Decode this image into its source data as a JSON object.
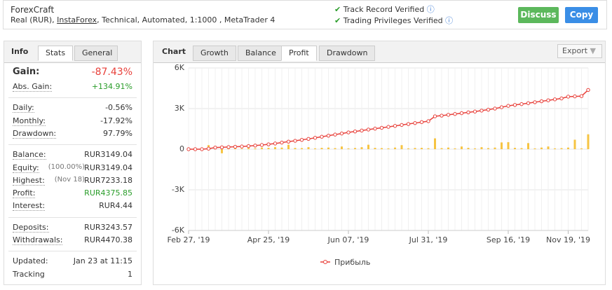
{
  "header": {
    "title": "ForexCraft",
    "subtitle": [
      "Real (RUR), ",
      "InstaForex",
      ", Technical, Automated, 1:1000 , MetaTrader 4"
    ],
    "verified": [
      "Track Record Verified",
      "Trading Privileges Verified"
    ],
    "buttons": [
      "Discuss",
      "Copy"
    ]
  },
  "info": {
    "tabs": [
      "Info",
      "Stats",
      "General"
    ],
    "groups": [
      [
        {
          "label": "Gain:",
          "value": "-87.43%",
          "color": "#e8413b"
        },
        {
          "label": "Abs. Gain:",
          "value": "+134.91%",
          "color": "#2a9d2a"
        }
      ],
      [
        {
          "label": "Daily:",
          "value": "-0.56%"
        },
        {
          "label": "Monthly:",
          "value": "-17.92%"
        },
        {
          "label": "Drawdown:",
          "value": "97.79%"
        }
      ],
      [
        {
          "label": "Balance:",
          "value": "RUR3149.04"
        },
        {
          "label": "Equity:",
          "note": "(100.00%)",
          "value": "RUR3149.04"
        },
        {
          "label": "Highest:",
          "note": "(Nov 18)",
          "value": "RUR7233.18"
        },
        {
          "label": "Profit:",
          "value": "RUR4375.85",
          "color": "#2a9d2a"
        },
        {
          "label": "Interest:",
          "value": "RUR4.44"
        }
      ],
      [
        {
          "label": "Deposits:",
          "value": "RUR3243.57"
        },
        {
          "label": "Withdrawals:",
          "value": "RUR4470.38"
        }
      ],
      [
        {
          "label": "Updated:",
          "value": "Jan 23 at 11:15"
        },
        {
          "label": "Tracking",
          "value": "1"
        }
      ]
    ]
  },
  "chart_tabs": {
    "tabs": [
      "Chart",
      "Growth",
      "Balance",
      "Profit",
      "Drawdown"
    ],
    "export": "Export"
  },
  "chart_data": {
    "type": "line",
    "categories": [
      "Feb 27, '19",
      null,
      null,
      null,
      null,
      null,
      null,
      null,
      null,
      null,
      null,
      null,
      "Apr 25, '19",
      null,
      null,
      null,
      null,
      null,
      null,
      null,
      null,
      null,
      null,
      null,
      "Jun 07, '19",
      null,
      null,
      null,
      null,
      null,
      null,
      null,
      null,
      null,
      null,
      null,
      "Jul 31, '19",
      null,
      null,
      null,
      null,
      null,
      null,
      null,
      null,
      null,
      null,
      null,
      "Sep 16, '19",
      null,
      null,
      null,
      null,
      null,
      null,
      null,
      null,
      "Nov 19, '19",
      null,
      null,
      null
    ],
    "series": [
      {
        "name": "Прибыль",
        "color": "#e8413b",
        "values": [
          0,
          0,
          0,
          40,
          120,
          140,
          160,
          180,
          200,
          230,
          270,
          310,
          360,
          420,
          490,
          560,
          620,
          690,
          760,
          840,
          920,
          1000,
          1080,
          1160,
          1240,
          1310,
          1380,
          1450,
          1520,
          1580,
          1650,
          1720,
          1790,
          1860,
          1930,
          2000,
          2070,
          2430,
          2480,
          2540,
          2600,
          2660,
          2720,
          2780,
          2850,
          2920,
          3000,
          3100,
          3200,
          3270,
          3330,
          3400,
          3470,
          3540,
          3610,
          3680,
          3750,
          3880,
          3900,
          3920,
          4375
        ]
      },
      {
        "type": "bar",
        "color": "#f6c443",
        "values": [
          30,
          40,
          20,
          300,
          150,
          -300,
          80,
          60,
          40,
          90,
          60,
          120,
          100,
          150,
          120,
          330,
          90,
          80,
          150,
          60,
          100,
          120,
          80,
          200,
          60,
          90,
          150,
          330,
          100,
          80,
          60,
          120,
          300,
          60,
          90,
          100,
          70,
          800,
          80,
          120,
          60,
          200,
          100,
          60,
          150,
          80,
          120,
          500,
          520,
          100,
          80,
          450,
          60,
          120,
          200,
          60,
          80,
          120,
          700,
          60,
          1100
        ]
      }
    ],
    "ylim": [
      -6000,
      6000
    ],
    "yticks": [
      {
        "value": 6000,
        "label": "6K"
      },
      {
        "value": 3000,
        "label": "3K"
      },
      0,
      {
        "value": -3000,
        "label": "-3K"
      },
      {
        "value": -6000,
        "label": "-6K"
      }
    ],
    "grid": true
  }
}
